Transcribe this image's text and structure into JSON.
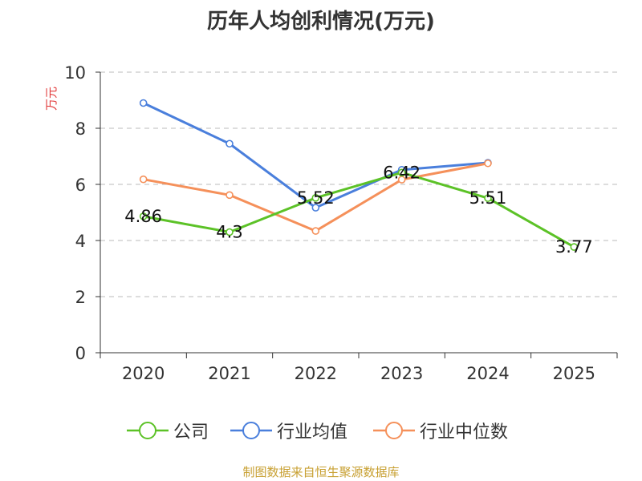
{
  "chart_data": {
    "type": "line",
    "title": "历年人均创利情况(万元)",
    "ylabel": "万元",
    "xlabel": "",
    "categories": [
      "2020",
      "2021",
      "2022",
      "2023",
      "2024",
      "2025"
    ],
    "ylim": [
      0,
      10
    ],
    "yticks": [
      0,
      2,
      4,
      6,
      8,
      10
    ],
    "grid": true,
    "legend_position": "bottom",
    "series": [
      {
        "name": "公司",
        "color": "#5cc227",
        "values": [
          4.86,
          4.3,
          5.52,
          6.42,
          5.51,
          3.77
        ],
        "labels": [
          "4.86",
          "4.3",
          "5.52",
          "6.42",
          "5.51",
          "3.77"
        ]
      },
      {
        "name": "行业均值",
        "color": "#4a7fdc",
        "values": [
          8.9,
          7.45,
          5.17,
          6.52,
          6.77,
          null
        ]
      },
      {
        "name": "行业中位数",
        "color": "#f5905a",
        "values": [
          6.18,
          5.62,
          4.34,
          6.17,
          6.75,
          null
        ]
      }
    ]
  },
  "footer": {
    "source": "制图数据来自恒生聚源数据库"
  }
}
